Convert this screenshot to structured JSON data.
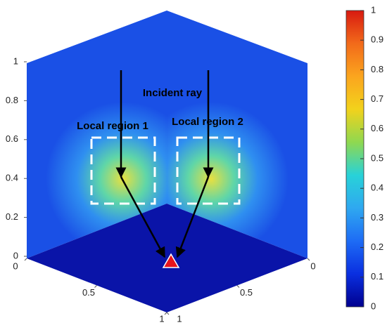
{
  "chart_data": {
    "type": "cube-field",
    "annotations": [
      "Incident ray",
      "Local region 1",
      "Local region 2"
    ],
    "xlim": [
      0,
      1
    ],
    "xticks": [
      0,
      0.5,
      1
    ],
    "ylim": [
      0,
      1
    ],
    "yticks": [
      0,
      0.5,
      1
    ],
    "zlim": [
      0,
      1
    ],
    "zticks": [
      0,
      0.2,
      0.4,
      0.6,
      0.8,
      1
    ],
    "clim": [
      0,
      1
    ],
    "cticks": [
      0,
      0.1,
      0.2,
      0.3,
      0.4,
      0.5,
      0.6,
      0.7,
      0.8,
      0.9,
      1
    ],
    "colormap": [
      "#00008f",
      "#0a2fe0",
      "#1e6cf5",
      "#2fa8f0",
      "#28d2d8",
      "#8fd850",
      "#f2d21c",
      "#fba51e",
      "#f26a1a",
      "#d81a10"
    ],
    "marker_color": "#e8141c"
  }
}
